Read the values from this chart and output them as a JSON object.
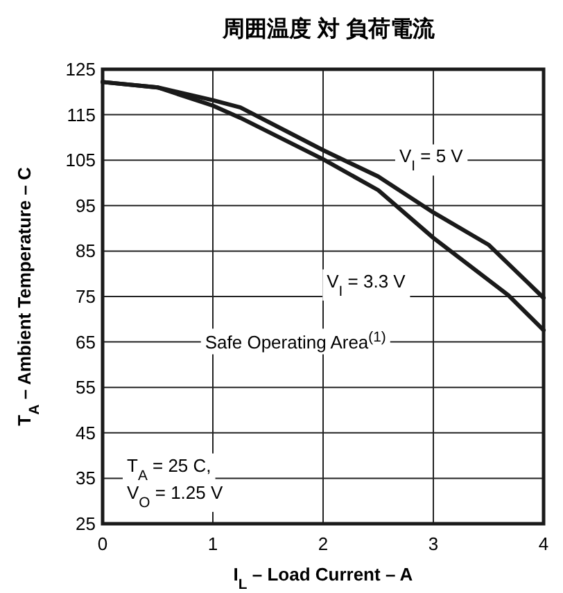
{
  "chart_data": {
    "type": "line",
    "title": "周囲温度 対 負荷電流",
    "xlabel": "I$_{L}$ – Load Current – A",
    "ylabel": "T$_{A}$ – Ambient Temperature –  C",
    "x": [
      0,
      0.5,
      1,
      1.25,
      2,
      2.5,
      3,
      3.5,
      3.68,
      4
    ],
    "series": [
      {
        "name": "V$_{I}$ = 5 V",
        "color": "#1a1a1a",
        "values": [
          122.2,
          121,
          118.2,
          116.6,
          107.2,
          101.4,
          93.5,
          86.4,
          null,
          74.7
        ]
      },
      {
        "name": "V$_{I}$ = 3.3 V",
        "color": "#1a1a1a",
        "values": [
          122.2,
          121,
          117,
          114.3,
          105.2,
          98.4,
          87.9,
          null,
          75.3,
          67.6
        ]
      }
    ],
    "annotations": [
      "Safe Operating Area$^{(1)}$",
      "T$_{A}$ = 25  C,",
      "V$_{O}$ = 1.25 V"
    ],
    "xlim": [
      0,
      4
    ],
    "xticks": [
      0,
      1,
      2,
      3,
      4
    ],
    "ylim": [
      25,
      125
    ],
    "yticks": [
      25,
      35,
      45,
      55,
      65,
      75,
      85,
      95,
      105,
      115,
      125
    ],
    "grid": true,
    "marker": "none",
    "line_style": "solid"
  }
}
